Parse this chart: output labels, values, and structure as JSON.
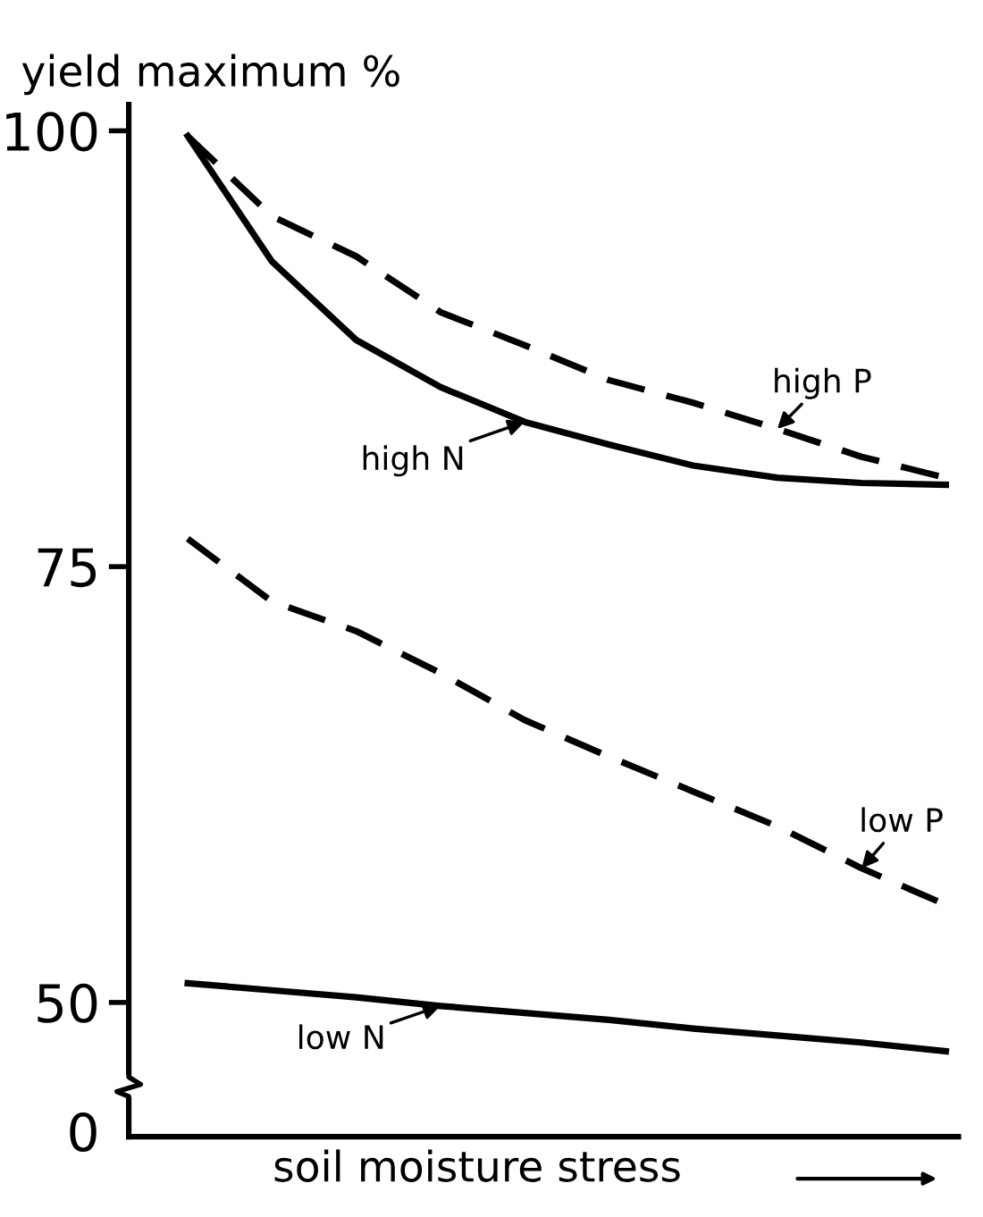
{
  "chart_data": [
    {
      "type": "line",
      "ylabel": "yield maximum %",
      "categories": [
        null,
        null,
        null,
        null,
        null,
        null,
        null,
        null,
        null,
        null
      ],
      "ylim": [
        46,
        101.5
      ],
      "yticks": [
        50,
        75,
        100
      ],
      "tick_labels": "y",
      "marker": "none",
      "series": [
        {
          "name": "high P",
          "color": "#000000",
          "line_style": "dashed",
          "values": [
            99.7,
            95.1,
            92.8,
            89.6,
            87.7,
            85.7,
            84.4,
            82.9,
            81.3,
            80.1
          ]
        },
        {
          "name": "high N",
          "color": "#000000",
          "line_style": "solid",
          "values": [
            99.7,
            92.5,
            88.0,
            85.3,
            83.3,
            82.0,
            80.8,
            80.1,
            79.8,
            79.7
          ]
        },
        {
          "name": "low P",
          "color": "#000000",
          "line_style": "dashed",
          "values": [
            76.6,
            73.0,
            71.3,
            68.9,
            66.2,
            64.1,
            62.1,
            60.1,
            57.7,
            55.6
          ]
        },
        {
          "name": "low N",
          "color": "#000000",
          "line_style": "solid",
          "values": [
            51.1,
            50.7,
            50.3,
            49.8,
            49.4,
            49.0,
            48.5,
            48.1,
            47.7,
            47.2
          ]
        }
      ]
    },
    {
      "type": "other",
      "xlabel": "soil moisture stress",
      "annotations": [
        "0"
      ]
    }
  ]
}
